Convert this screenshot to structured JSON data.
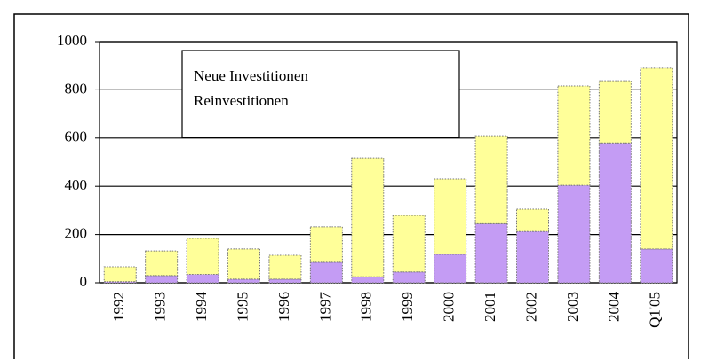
{
  "chart_data": {
    "type": "stacked_bar",
    "categories": [
      "1992",
      "1993",
      "1994",
      "1995",
      "1996",
      "1997",
      "1998",
      "1999",
      "2000",
      "2001",
      "2002",
      "2003",
      "2004",
      "Q1'05"
    ],
    "series": [
      {
        "name": "Neue Investitionen",
        "color": "#c49cf4",
        "values": [
          5,
          30,
          35,
          15,
          15,
          85,
          25,
          45,
          118,
          245,
          213,
          404,
          580,
          140
        ]
      },
      {
        "name": "Reinvestitionen",
        "color": "#ffff99",
        "values": [
          61,
          102,
          149,
          125,
          99,
          147,
          493,
          234,
          312,
          365,
          92,
          412,
          258,
          750
        ]
      }
    ],
    "ylim": [
      0,
      1000
    ],
    "yticks": [
      0,
      200,
      400,
      600,
      800,
      1000
    ],
    "grid": true
  }
}
